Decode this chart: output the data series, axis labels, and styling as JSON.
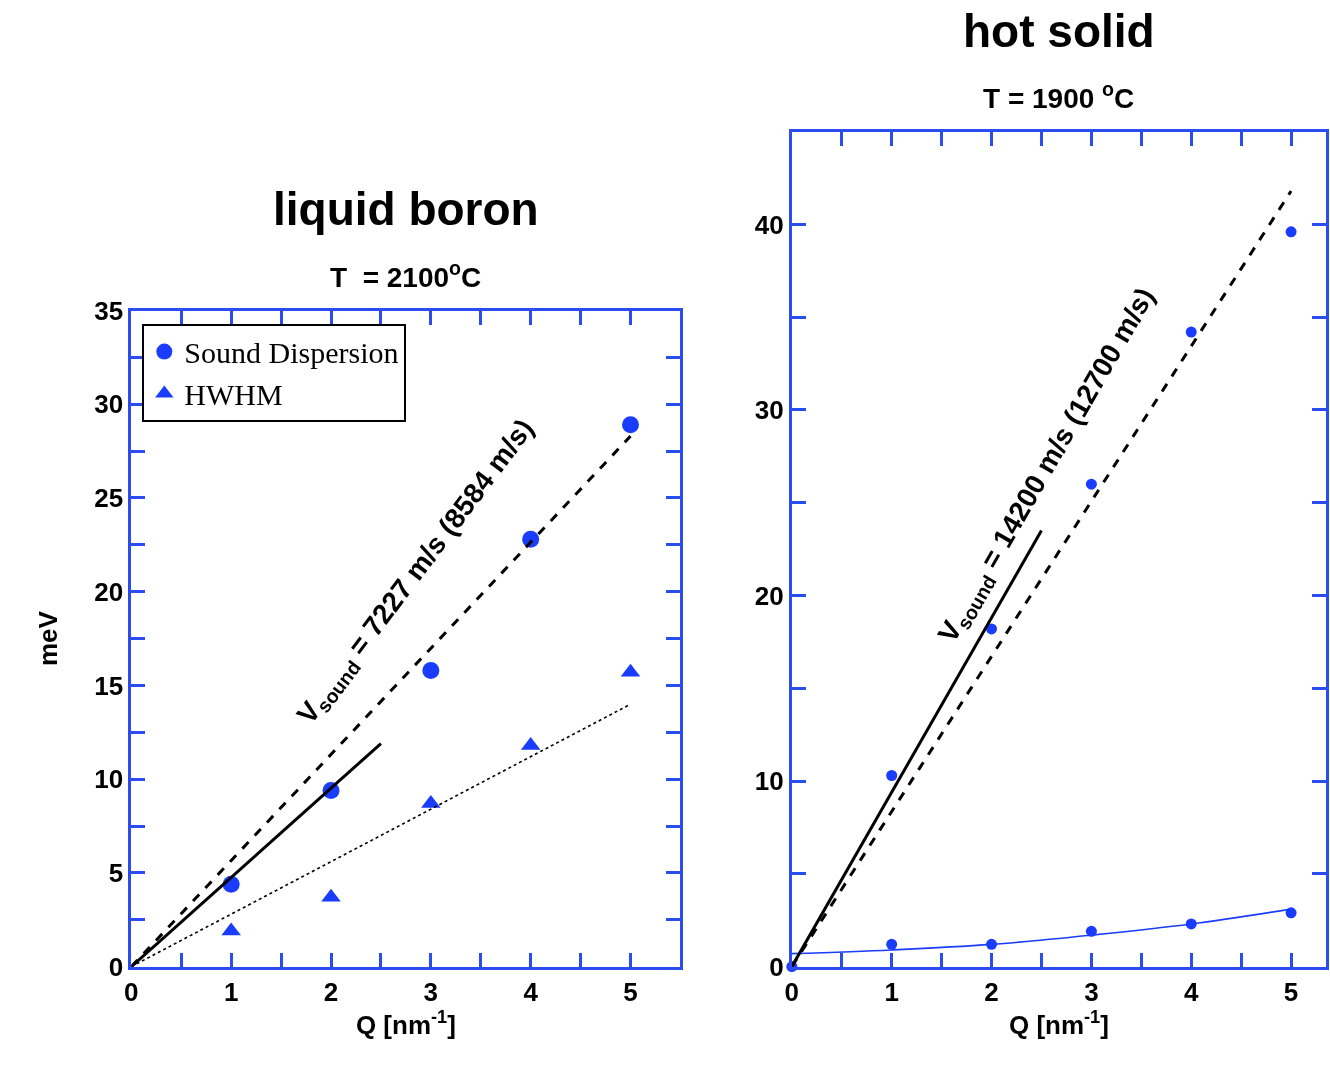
{
  "chart_data": [
    {
      "type": "scatter",
      "title": "liquid boron",
      "subtitle": "T  = 2100$^{o}$C",
      "xlabel": "Q [nm$^{-1}$]",
      "ylabel": "meV",
      "x": [
        1,
        2,
        3,
        4,
        5
      ],
      "series": [
        {
          "name": "Sound Dispersion",
          "color": "#1a3cff",
          "marker": "circle",
          "values": [
            4.4,
            9.4,
            15.8,
            22.8,
            28.9
          ]
        },
        {
          "name": "HWHM",
          "color": "#1a3cff",
          "marker": "triangle",
          "values": [
            1.9,
            3.7,
            8.7,
            11.8,
            15.7
          ]
        },
        {
          "type": "line",
          "color": "#000000",
          "line_style": "dashed",
          "marker": "none",
          "x": [
            0,
            5
          ],
          "values": [
            0,
            28.3
          ]
        },
        {
          "type": "line",
          "color": "#000000",
          "line_style": "solid",
          "marker": "none",
          "x": [
            0,
            2.5
          ],
          "values": [
            0,
            11.9
          ]
        },
        {
          "type": "line",
          "color": "#000000",
          "line_style": "dotted",
          "marker": "none",
          "x": [
            0,
            5
          ],
          "values": [
            0,
            14.0
          ]
        }
      ],
      "annotations": [
        "V$_{sound}$ = 7227 m/s (8584 m/s)"
      ],
      "xlim": [
        0,
        5.5
      ],
      "ylim": [
        0,
        35
      ],
      "xticks": [
        0,
        {
          "value": 0.5,
          "label": null
        },
        1,
        {
          "value": 1.5,
          "label": null
        },
        2,
        {
          "value": 2.5,
          "label": null
        },
        3,
        {
          "value": 3.5,
          "label": null
        },
        4,
        {
          "value": 4.5,
          "label": null
        },
        5
      ],
      "yticks": [
        0,
        {
          "value": 2.5,
          "label": null
        },
        5,
        {
          "value": 7.5,
          "label": null
        },
        10,
        {
          "value": 12.5,
          "label": null
        },
        15,
        {
          "value": 17.5,
          "label": null
        },
        20,
        {
          "value": 22.5,
          "label": null
        },
        25,
        {
          "value": 27.5,
          "label": null
        },
        30,
        {
          "value": 32.5,
          "label": null
        },
        35
      ],
      "legend": "top left"
    },
    {
      "type": "scatter",
      "title": "hot solid",
      "subtitle": "T = 1900 $^{o}$C",
      "xlabel": "Q [nm$^{-1}$]",
      "series": [
        {
          "color": "#1a3cff",
          "marker": "circle",
          "x": [
            0,
            1,
            2,
            3,
            4,
            5
          ],
          "values": [
            0,
            10.3,
            18.2,
            26.0,
            34.2,
            39.6
          ]
        },
        {
          "color": "#1a3cff",
          "marker": "circle",
          "x": [
            1,
            2,
            3,
            4,
            5
          ],
          "values": [
            1.2,
            1.2,
            1.9,
            2.3,
            2.9
          ]
        },
        {
          "type": "line",
          "color": "#1a3cff",
          "line_style": "solid",
          "marker": "none",
          "x": [
            0,
            1,
            2,
            3,
            4,
            5
          ],
          "values": [
            0.7,
            0.9,
            1.2,
            1.7,
            2.3,
            3.1
          ]
        },
        {
          "type": "line",
          "color": "#000000",
          "line_style": "solid",
          "marker": "none",
          "x": [
            0,
            2.5
          ],
          "values": [
            0,
            23.5
          ]
        },
        {
          "type": "line",
          "color": "#000000",
          "line_style": "dashed",
          "marker": "none",
          "x": [
            0,
            5
          ],
          "values": [
            0,
            41.8
          ]
        }
      ],
      "annotations": [
        "V$_{sound}$ = 14200 m/s (12700 m/s)"
      ],
      "xlim": [
        0,
        5.35
      ],
      "ylim": [
        0,
        45
      ],
      "xticks": [
        0,
        {
          "value": 0.5,
          "label": null
        },
        1,
        {
          "value": 1.5,
          "label": null
        },
        2,
        {
          "value": 2.5,
          "label": null
        },
        3,
        {
          "value": 3.5,
          "label": null
        },
        4,
        {
          "value": 4.5,
          "label": null
        },
        5
      ],
      "yticks": [
        0,
        {
          "value": 5,
          "label": null
        },
        10,
        {
          "value": 15,
          "label": null
        },
        20,
        {
          "value": 25,
          "label": null
        },
        30,
        {
          "value": 35,
          "label": null
        },
        40
      ],
      "legend": false
    }
  ]
}
